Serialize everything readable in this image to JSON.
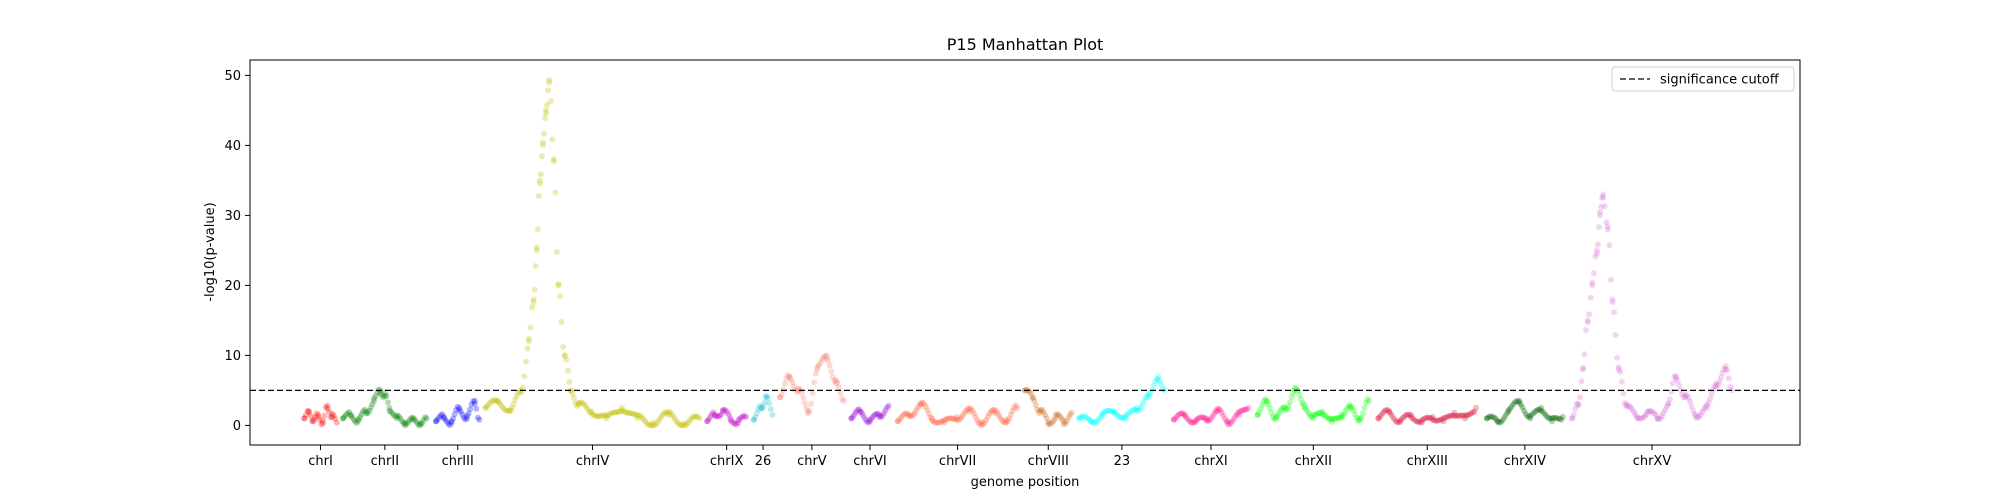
{
  "chart_data": {
    "type": "scatter",
    "title": "P15 Manhattan Plot",
    "xlabel": "genome position",
    "ylabel": "-log10(p-value)",
    "ylim": [
      -2.8,
      52.2
    ],
    "yticks": [
      0,
      10,
      20,
      30,
      40,
      50
    ],
    "grid": false,
    "legend": {
      "position": "top-right",
      "entries": [
        "significance cutoff"
      ]
    },
    "cutoff": 5,
    "point_alpha": 0.3,
    "chromosomes": [
      {
        "label": "chrI",
        "color": "#ff0000",
        "points": [
          [
            0.035,
            1.0
          ],
          [
            0.038,
            2.0
          ],
          [
            0.041,
            0.6
          ],
          [
            0.044,
            1.5
          ],
          [
            0.047,
            0.3
          ],
          [
            0.05,
            2.8
          ],
          [
            0.053,
            1.2
          ],
          [
            0.056,
            0.4
          ]
        ]
      },
      {
        "label": "chrII",
        "color": "#008000",
        "points": [
          [
            0.06,
            1.0
          ],
          [
            0.065,
            1.5
          ],
          [
            0.07,
            0.7
          ],
          [
            0.075,
            2.0
          ],
          [
            0.08,
            3.5
          ],
          [
            0.084,
            5.0
          ],
          [
            0.087,
            4.2
          ],
          [
            0.09,
            2.5
          ],
          [
            0.095,
            1.0
          ],
          [
            0.1,
            0.4
          ],
          [
            0.105,
            0.8
          ],
          [
            0.11,
            0.3
          ],
          [
            0.114,
            1.0
          ]
        ]
      },
      {
        "label": "chrIII",
        "color": "#0000ff",
        "points": [
          [
            0.12,
            0.6
          ],
          [
            0.125,
            1.2
          ],
          [
            0.13,
            0.4
          ],
          [
            0.135,
            2.5
          ],
          [
            0.14,
            1.0
          ],
          [
            0.145,
            3.5
          ],
          [
            0.148,
            0.8
          ]
        ]
      },
      {
        "label": "chrIV",
        "color": "#bfbf00",
        "points": [
          [
            0.152,
            2.5
          ],
          [
            0.16,
            3.5
          ],
          [
            0.168,
            2.0
          ],
          [
            0.175,
            5.0
          ],
          [
            0.18,
            12.0
          ],
          [
            0.183,
            18.0
          ],
          [
            0.185,
            25.0
          ],
          [
            0.187,
            35.0
          ],
          [
            0.189,
            40.0
          ],
          [
            0.191,
            45.0
          ],
          [
            0.193,
            49.0
          ],
          [
            0.196,
            38.0
          ],
          [
            0.199,
            20.0
          ],
          [
            0.203,
            10.0
          ],
          [
            0.207,
            5.0
          ],
          [
            0.212,
            3.0
          ],
          [
            0.22,
            2.0
          ],
          [
            0.23,
            1.0
          ],
          [
            0.24,
            2.5
          ],
          [
            0.25,
            1.0
          ],
          [
            0.26,
            0.4
          ],
          [
            0.27,
            1.5
          ],
          [
            0.28,
            0.3
          ],
          [
            0.29,
            1.0
          ]
        ]
      },
      {
        "label": "chrIX",
        "color": "#bf00bf",
        "points": [
          [
            0.295,
            0.6
          ],
          [
            0.3,
            1.5
          ],
          [
            0.305,
            2.0
          ],
          [
            0.31,
            1.0
          ],
          [
            0.315,
            0.4
          ],
          [
            0.32,
            1.2
          ]
        ]
      },
      {
        "label": "26",
        "color": "#17becf",
        "points": [
          [
            0.325,
            0.8
          ],
          [
            0.33,
            2.5
          ],
          [
            0.333,
            4.0
          ],
          [
            0.337,
            1.5
          ]
        ]
      },
      {
        "label": "chrV",
        "color": "#fa8072",
        "points": [
          [
            0.342,
            4.0
          ],
          [
            0.348,
            7.0
          ],
          [
            0.354,
            5.0
          ],
          [
            0.36,
            2.0
          ],
          [
            0.366,
            8.0
          ],
          [
            0.372,
            10.0
          ],
          [
            0.378,
            6.0
          ],
          [
            0.383,
            3.5
          ]
        ]
      },
      {
        "label": "chrVI",
        "color": "#9400d3",
        "points": [
          [
            0.388,
            1.0
          ],
          [
            0.394,
            2.0
          ],
          [
            0.4,
            0.6
          ],
          [
            0.406,
            1.5
          ],
          [
            0.412,
            2.8
          ]
        ]
      },
      {
        "label": "chrVII",
        "color": "#ff6347",
        "points": [
          [
            0.418,
            0.6
          ],
          [
            0.425,
            1.5
          ],
          [
            0.433,
            3.0
          ],
          [
            0.44,
            1.0
          ],
          [
            0.448,
            0.4
          ],
          [
            0.456,
            1.2
          ],
          [
            0.464,
            2.0
          ],
          [
            0.472,
            0.5
          ],
          [
            0.48,
            1.8
          ],
          [
            0.488,
            0.8
          ],
          [
            0.495,
            2.5
          ]
        ]
      },
      {
        "label": "chrVIII",
        "color": "#d2691e",
        "points": [
          [
            0.5,
            5.0
          ],
          [
            0.505,
            4.0
          ],
          [
            0.51,
            2.0
          ],
          [
            0.515,
            0.5
          ],
          [
            0.52,
            1.2
          ],
          [
            0.525,
            0.6
          ],
          [
            0.53,
            1.8
          ]
        ]
      },
      {
        "label": "23",
        "color": "#00ffff",
        "points": [
          [
            0.535,
            1.0
          ],
          [
            0.543,
            0.6
          ],
          [
            0.55,
            1.5
          ],
          [
            0.558,
            2.0
          ],
          [
            0.565,
            1.0
          ],
          [
            0.572,
            2.5
          ],
          [
            0.58,
            4.0
          ],
          [
            0.586,
            7.0
          ],
          [
            0.59,
            5.0
          ]
        ]
      },
      {
        "label": "chrXI",
        "color": "#ff1493",
        "points": [
          [
            0.596,
            0.8
          ],
          [
            0.603,
            1.5
          ],
          [
            0.61,
            0.5
          ],
          [
            0.617,
            1.0
          ],
          [
            0.624,
            2.0
          ],
          [
            0.631,
            0.6
          ],
          [
            0.638,
            1.5
          ],
          [
            0.644,
            2.5
          ]
        ]
      },
      {
        "label": "chrXII",
        "color": "#00ff00",
        "points": [
          [
            0.65,
            1.5
          ],
          [
            0.656,
            3.5
          ],
          [
            0.662,
            1.0
          ],
          [
            0.668,
            2.5
          ],
          [
            0.674,
            5.0
          ],
          [
            0.68,
            3.0
          ],
          [
            0.686,
            1.0
          ],
          [
            0.692,
            2.0
          ],
          [
            0.698,
            0.5
          ],
          [
            0.704,
            1.5
          ],
          [
            0.71,
            2.5
          ],
          [
            0.716,
            1.0
          ],
          [
            0.722,
            3.5
          ]
        ]
      },
      {
        "label": "chrXIII",
        "color": "#dc143c",
        "points": [
          [
            0.728,
            1.0
          ],
          [
            0.735,
            2.0
          ],
          [
            0.742,
            0.5
          ],
          [
            0.749,
            1.5
          ],
          [
            0.756,
            0.4
          ],
          [
            0.763,
            1.2
          ],
          [
            0.77,
            0.6
          ],
          [
            0.777,
            1.8
          ],
          [
            0.784,
            1.0
          ],
          [
            0.791,
            2.5
          ]
        ]
      },
      {
        "label": "chrXIV",
        "color": "#006400",
        "points": [
          [
            0.798,
            1.0
          ],
          [
            0.805,
            0.6
          ],
          [
            0.812,
            2.0
          ],
          [
            0.819,
            3.5
          ],
          [
            0.826,
            1.0
          ],
          [
            0.833,
            2.5
          ],
          [
            0.84,
            0.6
          ],
          [
            0.847,
            1.2
          ]
        ]
      },
      {
        "label": "chrXV",
        "color": "#da70d6",
        "points": [
          [
            0.853,
            1.0
          ],
          [
            0.857,
            3.0
          ],
          [
            0.86,
            8.0
          ],
          [
            0.863,
            15.0
          ],
          [
            0.866,
            20.0
          ],
          [
            0.869,
            25.0
          ],
          [
            0.871,
            30.0
          ],
          [
            0.873,
            33.0
          ],
          [
            0.876,
            28.0
          ],
          [
            0.879,
            18.0
          ],
          [
            0.883,
            8.0
          ],
          [
            0.888,
            3.0
          ],
          [
            0.895,
            1.0
          ],
          [
            0.902,
            2.0
          ],
          [
            0.908,
            1.0
          ],
          [
            0.915,
            3.0
          ],
          [
            0.92,
            7.0
          ],
          [
            0.926,
            4.0
          ],
          [
            0.933,
            1.5
          ],
          [
            0.94,
            2.5
          ],
          [
            0.946,
            6.0
          ],
          [
            0.952,
            8.0
          ],
          [
            0.956,
            5.0
          ]
        ]
      }
    ]
  }
}
